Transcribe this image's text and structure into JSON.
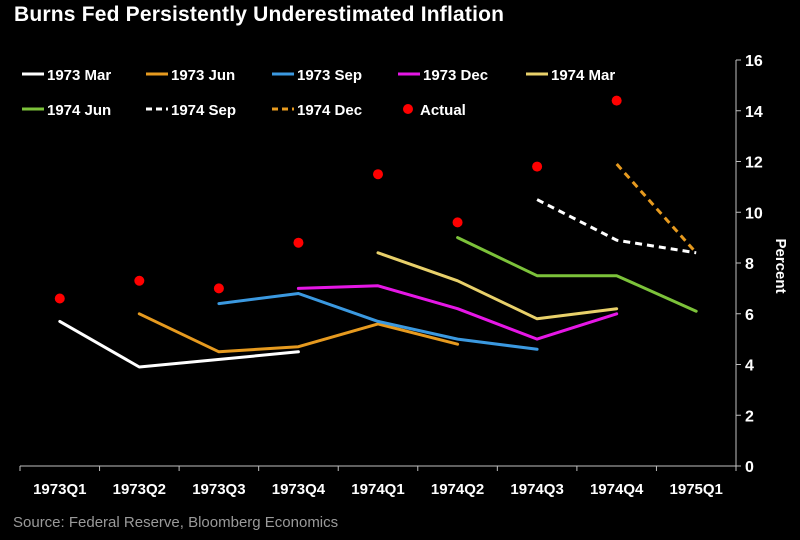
{
  "page": {
    "title": "Burns Fed Persistently Underestimated Inflation",
    "source": "Source: Federal Reserve, Bloomberg Economics"
  },
  "chart_data": {
    "type": "line",
    "categories": [
      "1973Q1",
      "1973Q2",
      "1973Q3",
      "1973Q4",
      "1974Q1",
      "1974Q2",
      "1974Q3",
      "1974Q4",
      "1975Q1"
    ],
    "ylabel": "Percent",
    "ylim": [
      0,
      16
    ],
    "yticks": [
      0,
      2,
      4,
      6,
      8,
      10,
      12,
      14,
      16
    ],
    "y_axis_side": "right",
    "grid": false,
    "legend_position": "top-left",
    "series": [
      {
        "name": "1973 Mar",
        "color": "#ffffff",
        "dash": false,
        "values": [
          5.7,
          3.9,
          null,
          4.5,
          null,
          null,
          null,
          null,
          null
        ]
      },
      {
        "name": "1973 Jun",
        "color": "#e69a1f",
        "dash": false,
        "values": [
          null,
          6.0,
          4.5,
          4.7,
          5.6,
          4.8,
          null,
          null,
          null
        ]
      },
      {
        "name": "1973 Sep",
        "color": "#3b99e0",
        "dash": false,
        "values": [
          null,
          null,
          6.4,
          6.8,
          5.7,
          5.0,
          4.6,
          null,
          null
        ]
      },
      {
        "name": "1973 Dec",
        "color": "#e617e6",
        "dash": false,
        "values": [
          null,
          null,
          null,
          7.0,
          7.1,
          6.2,
          5.0,
          6.0,
          null
        ]
      },
      {
        "name": "1974 Mar",
        "color": "#e8d06a",
        "dash": false,
        "values": [
          null,
          null,
          null,
          null,
          8.4,
          7.3,
          5.8,
          6.2,
          null
        ]
      },
      {
        "name": "1974 Jun",
        "color": "#7cc23a",
        "dash": false,
        "values": [
          null,
          null,
          null,
          null,
          null,
          9.0,
          7.5,
          7.5,
          6.1
        ]
      },
      {
        "name": "1974 Sep",
        "color": "#ffffff",
        "dash": true,
        "values": [
          null,
          null,
          null,
          null,
          null,
          null,
          10.5,
          8.9,
          8.4
        ]
      },
      {
        "name": "1974 Dec",
        "color": "#e69a1f",
        "dash": true,
        "values": [
          null,
          null,
          null,
          null,
          null,
          null,
          null,
          11.9,
          8.4
        ]
      }
    ],
    "actual": {
      "name": "Actual",
      "color": "#ff0000",
      "values": [
        6.6,
        7.3,
        7.0,
        8.8,
        11.5,
        9.6,
        11.8,
        14.4,
        null
      ]
    }
  }
}
